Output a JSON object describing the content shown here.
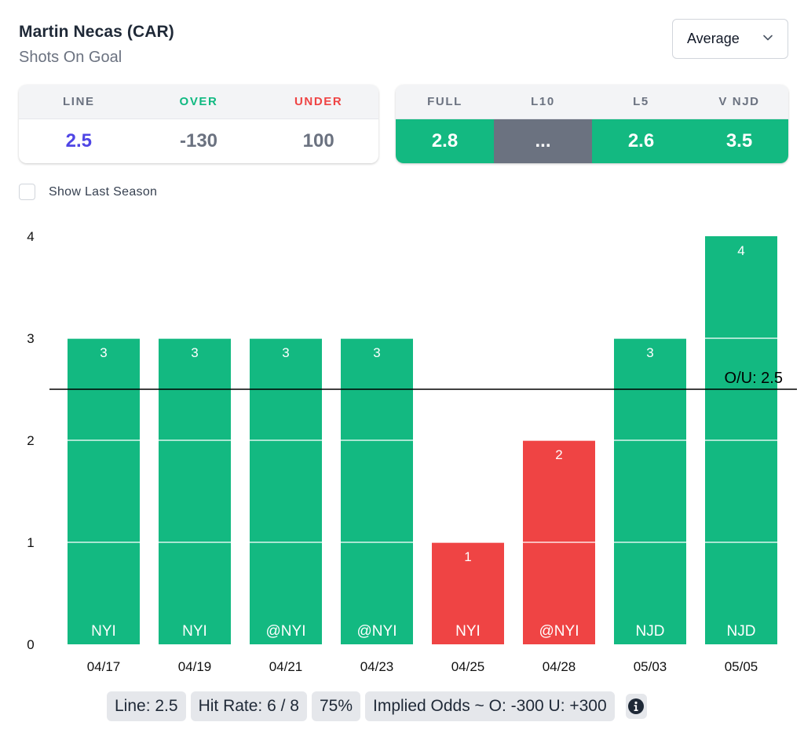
{
  "header": {
    "player": "Martin Necas (CAR)",
    "stat": "Shots On Goal",
    "select_value": "Average"
  },
  "line_card": {
    "headers": [
      "LINE",
      "OVER",
      "UNDER"
    ],
    "values": [
      "2.5",
      "-130",
      "100"
    ]
  },
  "avg_card": {
    "headers": [
      "FULL",
      "L10",
      "L5",
      "V NJD"
    ],
    "values": [
      "2.8",
      "...",
      "2.6",
      "3.5"
    ],
    "status": [
      "over",
      "na",
      "over",
      "over"
    ]
  },
  "options": {
    "show_last_season_label": "Show Last Season",
    "show_last_season_checked": false
  },
  "colors": {
    "over": "#13b981",
    "under": "#ef4444",
    "na": "#6b7280",
    "accent": "#4f46e5"
  },
  "chart_data": {
    "type": "bar",
    "title": "",
    "xlabel": "",
    "ylabel": "",
    "categories": [
      "04/17",
      "04/19",
      "04/21",
      "04/23",
      "04/25",
      "04/28",
      "05/03",
      "05/05"
    ],
    "opponents": [
      "NYI",
      "NYI",
      "@NYI",
      "@NYI",
      "NYI",
      "@NYI",
      "NJD",
      "NJD"
    ],
    "values": [
      3,
      3,
      3,
      3,
      1,
      2,
      3,
      4
    ],
    "result": [
      "over",
      "over",
      "over",
      "over",
      "under",
      "under",
      "over",
      "over"
    ],
    "ylim": [
      0,
      4
    ],
    "yticks": [
      0,
      1,
      2,
      3,
      4
    ],
    "grid": true,
    "reference_line": {
      "value": 2.5,
      "label": "O/U: 2.5"
    }
  },
  "summary": {
    "line": "Line: 2.5",
    "hit_rate": "Hit Rate: 6 / 8",
    "hit_pct": "75%",
    "implied_odds": "Implied Odds ~ O: -300 U: +300"
  }
}
